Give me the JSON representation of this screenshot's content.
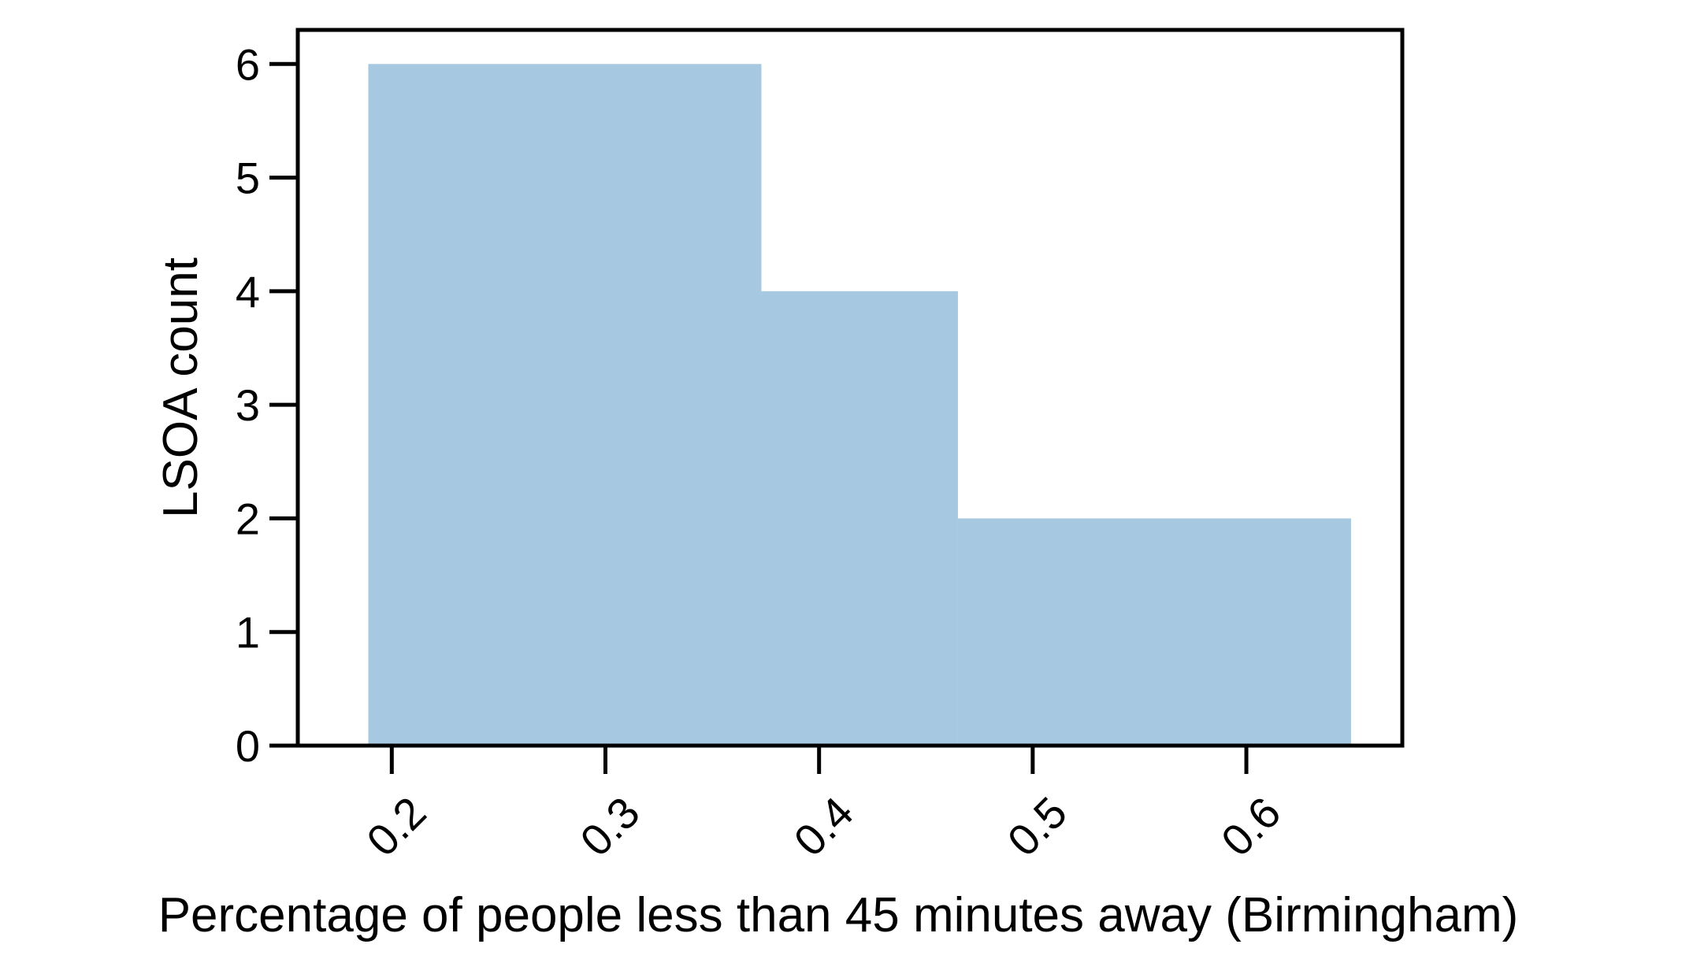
{
  "chart_data": {
    "type": "bar",
    "subtype": "histogram",
    "title": "",
    "xlabel": "Percentage of people less than 45 minutes away (Birmingham)",
    "ylabel": "LSOA count",
    "bins": [
      {
        "x0": 0.189,
        "x1": 0.373,
        "count": 6
      },
      {
        "x0": 0.373,
        "x1": 0.465,
        "count": 4
      },
      {
        "x0": 0.465,
        "x1": 0.649,
        "count": 2
      }
    ],
    "xlim": [
      0.156,
      0.673
    ],
    "ylim": [
      0,
      6.3
    ],
    "xticks": [
      {
        "value": 0.2,
        "label": "0.2"
      },
      {
        "value": 0.3,
        "label": "0.3"
      },
      {
        "value": 0.4,
        "label": "0.4"
      },
      {
        "value": 0.5,
        "label": "0.5"
      },
      {
        "value": 0.6,
        "label": "0.6"
      }
    ],
    "yticks": [
      {
        "value": 0,
        "label": "0"
      },
      {
        "value": 1,
        "label": "1"
      },
      {
        "value": 2,
        "label": "2"
      },
      {
        "value": 3,
        "label": "3"
      },
      {
        "value": 4,
        "label": "4"
      },
      {
        "value": 5,
        "label": "5"
      },
      {
        "value": 6,
        "label": "6"
      }
    ],
    "xtick_rotation_deg": 45,
    "grid": false,
    "legend": "none",
    "colors": {
      "bar": "#a6c8e0",
      "axes": "#000000",
      "background": "#ffffff"
    }
  }
}
